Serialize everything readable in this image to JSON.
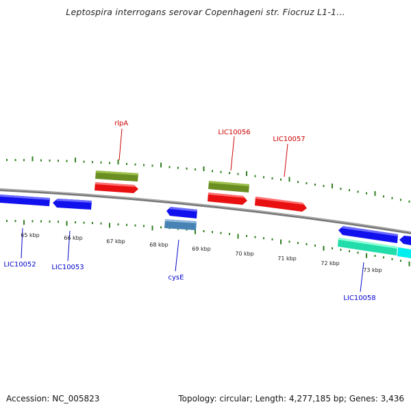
{
  "title": "Leptospira interrogans serovar Copenhageni str. Fiocruz L1-1...",
  "footer": {
    "accession": "Accession: NC_005823",
    "summary": "Topology: circular; Length: 4,277,185 bp; Genes: 3,436"
  },
  "colors": {
    "backbone": "#888888",
    "ticks": "#2e7d1e",
    "forward_gene": "#ee1111",
    "forward_gene_alt": "#6b8e23",
    "reverse_gene": "#1111ee",
    "reverse_gene_alt": "#4682b4",
    "cyan_gene": "#00eeee",
    "teal_gene": "#22ddaa",
    "label_red": "#cc0000",
    "label_blue": "#0000cc"
  },
  "kbp_labels": [
    "65 kbp",
    "66 kbp",
    "67 kbp",
    "68 kbp",
    "69 kbp",
    "70 kbp",
    "71 kbp",
    "72 kbp",
    "73 kbp"
  ],
  "gene_labels": {
    "rlpA": "rlpA",
    "LIC10056": "LIC10056",
    "LIC10057": "LIC10057",
    "LIC10052": "LIC10052",
    "LIC10053": "LIC10053",
    "cysE": "cysE",
    "LIC10058": "LIC10058"
  }
}
